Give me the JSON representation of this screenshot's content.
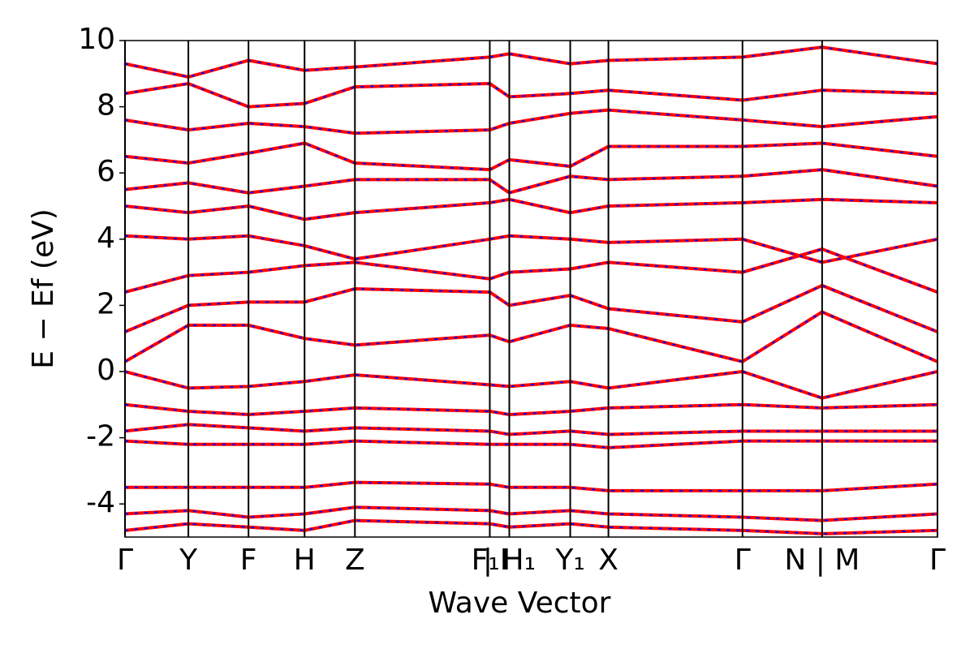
{
  "chart_data": {
    "type": "line",
    "xlabel": "Wave Vector",
    "ylabel": "E − Ef (eV)",
    "x": [
      0,
      7.8,
      15.2,
      22.1,
      28.3,
      44.9,
      47.3,
      54.8,
      59.5,
      76.0,
      85.8,
      100
    ],
    "xlim": [
      0,
      100
    ],
    "xticks": [
      {
        "value": 0,
        "label": "Γ"
      },
      {
        "value": 7.8,
        "label": "Y"
      },
      {
        "value": 15.2,
        "label": "F"
      },
      {
        "value": 22.1,
        "label": "H"
      },
      {
        "value": 28.3,
        "label": "Z"
      },
      {
        "value": 44.9,
        "label": "F₁I"
      },
      {
        "value": 47.3,
        "label": "| H₁"
      },
      {
        "value": 54.8,
        "label": "Y₁"
      },
      {
        "value": 59.5,
        "label": "X"
      },
      {
        "value": 76.0,
        "label": "Γ"
      },
      {
        "value": 85.8,
        "label": "N | M"
      },
      {
        "value": 100,
        "label": "Γ"
      }
    ],
    "ylim": [
      -5,
      10
    ],
    "yticks": [
      -4,
      -2,
      0,
      2,
      4,
      6,
      8,
      10
    ],
    "color": "#ff0000",
    "dash_color": "#0000ff",
    "series": [
      {
        "values": [
          -4.8,
          -4.6,
          -4.7,
          -4.8,
          -4.5,
          -4.6,
          -4.7,
          -4.6,
          -4.7,
          -4.8,
          -4.9,
          -4.8
        ]
      },
      {
        "values": [
          -4.3,
          -4.2,
          -4.4,
          -4.3,
          -4.1,
          -4.2,
          -4.3,
          -4.2,
          -4.3,
          -4.4,
          -4.5,
          -4.3
        ]
      },
      {
        "values": [
          -3.5,
          -3.5,
          -3.5,
          -3.5,
          -3.35,
          -3.4,
          -3.5,
          -3.5,
          -3.6,
          -3.6,
          -3.6,
          -3.4
        ]
      },
      {
        "values": [
          -2.1,
          -2.2,
          -2.2,
          -2.2,
          -2.1,
          -2.2,
          -2.2,
          -2.2,
          -2.3,
          -2.1,
          -2.1,
          -2.1
        ]
      },
      {
        "values": [
          -1.8,
          -1.6,
          -1.7,
          -1.8,
          -1.7,
          -1.8,
          -1.9,
          -1.8,
          -1.9,
          -1.8,
          -1.8,
          -1.8
        ]
      },
      {
        "values": [
          -1.0,
          -1.2,
          -1.3,
          -1.2,
          -1.1,
          -1.2,
          -1.3,
          -1.2,
          -1.1,
          -1.0,
          -1.1,
          -1.0
        ]
      },
      {
        "values": [
          0,
          -0.5,
          -0.45,
          -0.3,
          -0.1,
          -0.4,
          -0.45,
          -0.3,
          -0.5,
          0,
          -0.8,
          0
        ]
      },
      {
        "values": [
          0.3,
          1.4,
          1.4,
          1.0,
          0.8,
          1.1,
          0.9,
          1.4,
          1.3,
          0.3,
          1.8,
          0.3
        ]
      },
      {
        "values": [
          1.2,
          2.0,
          2.1,
          2.1,
          2.5,
          2.4,
          2.0,
          2.3,
          1.9,
          1.5,
          2.6,
          1.2
        ]
      },
      {
        "values": [
          2.4,
          2.9,
          3.0,
          3.2,
          3.3,
          2.8,
          3.0,
          3.1,
          3.3,
          3.0,
          3.7,
          2.4
        ]
      },
      {
        "values": [
          4.1,
          4.0,
          4.1,
          3.8,
          3.4,
          4.0,
          4.1,
          4.0,
          3.9,
          4.0,
          3.3,
          4.0
        ]
      },
      {
        "values": [
          5.0,
          4.8,
          5.0,
          4.6,
          4.8,
          5.1,
          5.2,
          4.8,
          5.0,
          5.1,
          5.2,
          5.1
        ]
      },
      {
        "values": [
          5.5,
          5.7,
          5.4,
          5.6,
          5.8,
          5.8,
          5.4,
          5.9,
          5.8,
          5.9,
          6.1,
          5.6
        ]
      },
      {
        "values": [
          6.5,
          6.3,
          6.6,
          6.9,
          6.3,
          6.1,
          6.4,
          6.2,
          6.8,
          6.8,
          6.9,
          6.5
        ]
      },
      {
        "values": [
          7.6,
          7.3,
          7.5,
          7.4,
          7.2,
          7.3,
          7.5,
          7.8,
          7.9,
          7.6,
          7.4,
          7.7
        ]
      },
      {
        "values": [
          8.4,
          8.7,
          8.0,
          8.1,
          8.6,
          8.7,
          8.3,
          8.4,
          8.5,
          8.2,
          8.5,
          8.4
        ]
      },
      {
        "values": [
          9.3,
          8.9,
          9.4,
          9.1,
          9.2,
          9.5,
          9.6,
          9.3,
          9.4,
          9.5,
          9.8,
          9.3
        ]
      }
    ]
  }
}
